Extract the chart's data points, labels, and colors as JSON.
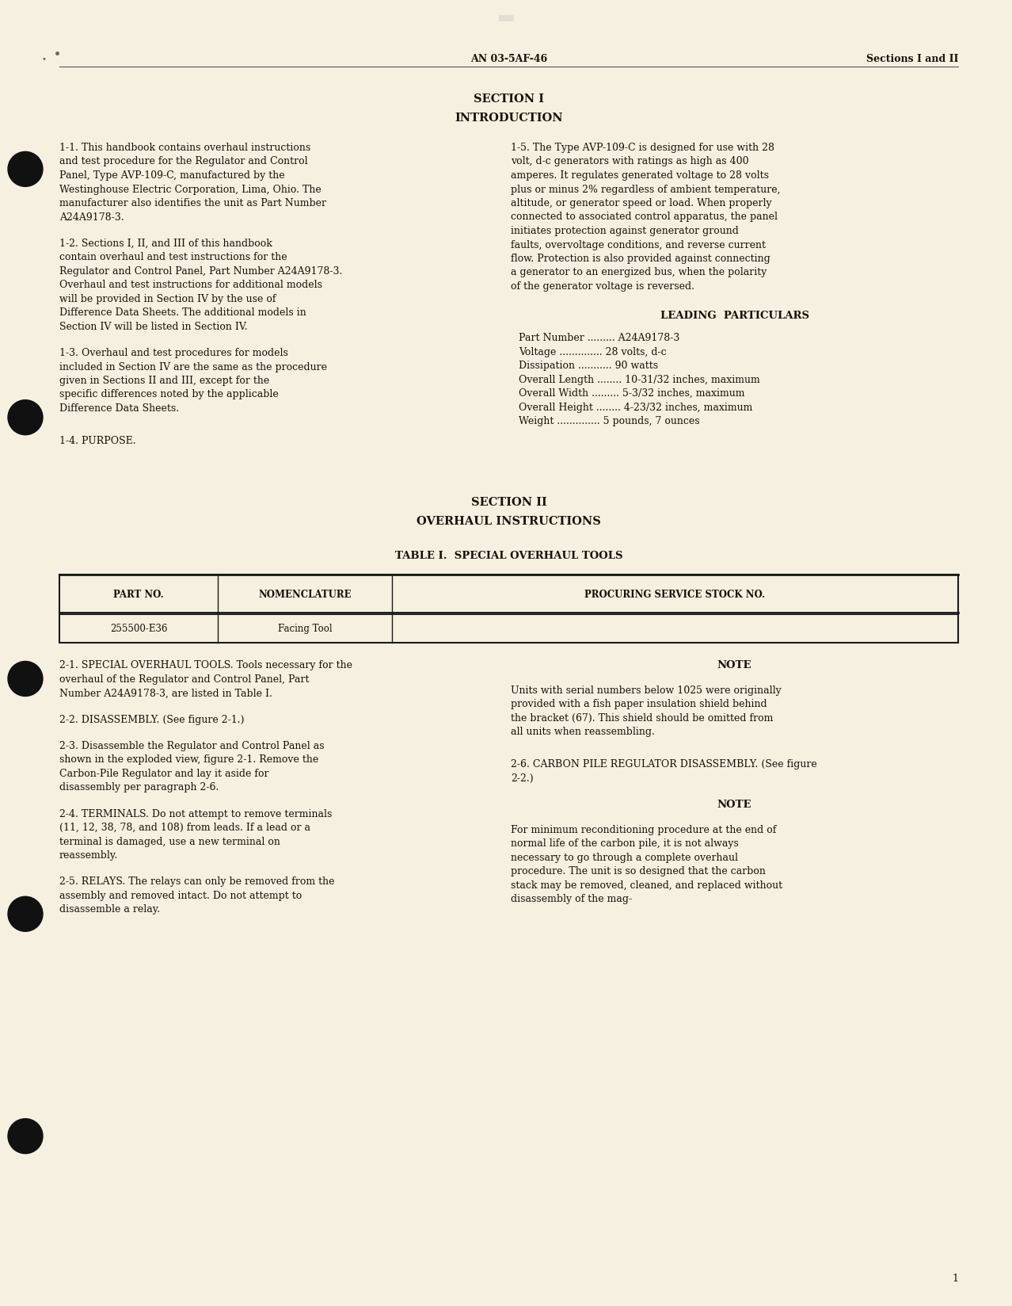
{
  "background_color": "#f5f0e0",
  "page_number": "1",
  "header_left": "AN 03-5AF-46",
  "header_right": "Sections I and II",
  "section1_title": "SECTION I",
  "section1_subtitle": "INTRODUCTION",
  "section2_title": "SECTION II",
  "section2_subtitle": "OVERHAUL INSTRUCTIONS",
  "table_title": "TABLE I.  SPECIAL OVERHAUL TOOLS",
  "table_headers": [
    "PART NO.",
    "NOMENCLATURE",
    "PROCURING SERVICE STOCK NO."
  ],
  "table_row": [
    "255500-E36",
    "Facing Tool",
    ""
  ],
  "para_11_text": "1-1.  This handbook contains overhaul instructions and test procedure for the Regulator and Control Panel, Type AVP-109-C, manufactured by the Westinghouse Electric Corporation, Lima, Ohio.  The manufacturer also identifies the unit as Part Number A24A9178-3.",
  "para_12_text": "1-2.  Sections I, II, and III of this handbook contain overhaul and test instructions for the Regulator and Control Panel, Part Number A24A9178-3.  Overhaul and test instructions for additional models will be provided in Section IV by the use  of Difference Data Sheets. The additional models in Section IV will be listed in Section IV.",
  "para_13_text": "1-3.  Overhaul and test procedures for models included in Section IV are the same as the procedure given in Sections II and III, except for the specific differences noted by the applicable Difference Data Sheets.",
  "para_14_text": "1-4.  PURPOSE.",
  "para_15_text": "1-5.  The Type AVP-109-C is designed for use with 28 volt, d-c generators with ratings as high as  400 amperes.  It regulates generated voltage to 28 volts plus or minus 2% regardless of ambient temperature, altitude, or generator speed or load.  When properly connected to associated control apparatus, the panel initiates protection against generator ground faults, overvoltage conditions, and reverse current flow. Protection is also provided against connecting a generator to an energized bus, when the polarity of the generator voltage is reversed.",
  "leading_particulars_title": "LEADING  PARTICULARS",
  "leading_particulars_lines": [
    "Part Number ......... A24A9178-3",
    "Voltage .............. 28 volts, d-c",
    "Dissipation ........... 90 watts",
    "Overall Length ........ 10-31/32 inches, maximum",
    "Overall Width ......... 5-3/32 inches, maximum",
    "Overall Height ........ 4-23/32 inches, maximum",
    "Weight .............. 5 pounds, 7 ounces"
  ],
  "para_21_text": "2-1.  SPECIAL OVERHAUL TOOLS.  Tools necessary for the overhaul of the  Regulator and Control Panel, Part Number A24A9178-3, are listed in Table I.",
  "para_22_text": "2-2.  DISASSEMBLY.  (See figure 2-1.)",
  "para_23_text": "2-3.  Disassemble the Regulator and Control Panel as shown in the exploded view, figure 2-1.  Remove the Carbon-Pile Regulator and lay it aside for disassembly per paragraph 2-6.",
  "para_24_text": "2-4.  TERMINALS.  Do not attempt to remove terminals (11, 12, 38, 78, and 108) from leads.  If a lead or a terminal is damaged,  use a new terminal on reassembly.",
  "para_25_text": "2-5.  RELAYS.  The relays can only be removed from the assembly and removed intact.  Do not attempt to disassemble a relay.",
  "note1_title": "NOTE",
  "note1_text": "Units with serial numbers below 1025 were originally provided with a fish paper insulation shield behind the bracket (67).  This shield should be omitted from all units when reassembling.",
  "para_26_text": "2-6.  CARBON PILE REGULATOR DISASSEMBLY. (See figure 2-2.)",
  "note2_title": "NOTE",
  "note2_text": "For minimum reconditioning procedure at the end of normal life of the carbon pile, it is not always necessary to go through a complete overhaul procedure.  The unit is so designed that the carbon stack may be removed, cleaned, and replaced without disassembly of the mag-"
}
